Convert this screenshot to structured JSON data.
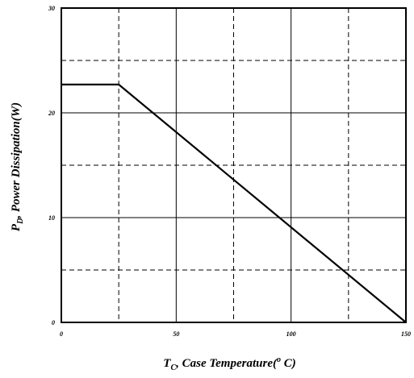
{
  "chart_data": {
    "type": "line",
    "title": "",
    "xlabel": {
      "main": "T",
      "sub": "C",
      "rest": ", Case Temperature(",
      "sup": "o",
      "end": " C)"
    },
    "ylabel": {
      "main": "P",
      "sub": "D",
      "rest": ", Power Dissipation(W)"
    },
    "xlim": [
      0,
      150
    ],
    "ylim": [
      0,
      30
    ],
    "x_ticks": [
      0,
      50,
      100,
      150
    ],
    "x_tick_labels": [
      "0",
      "50",
      "100",
      "150"
    ],
    "y_ticks": [
      0,
      10,
      20,
      30
    ],
    "y_tick_labels": [
      "0",
      "10",
      "20",
      "30"
    ],
    "x_grid_solid": [
      50,
      100
    ],
    "x_grid_dashed": [
      25,
      75,
      125
    ],
    "y_grid_solid": [
      10,
      20
    ],
    "y_grid_dashed": [
      5,
      15,
      25
    ],
    "series": [
      {
        "x": [
          0,
          25,
          150
        ],
        "y": [
          22.7,
          22.7,
          0
        ]
      }
    ],
    "colors": {
      "line": "#000000",
      "grid": "#000000",
      "frame": "#000000"
    }
  }
}
